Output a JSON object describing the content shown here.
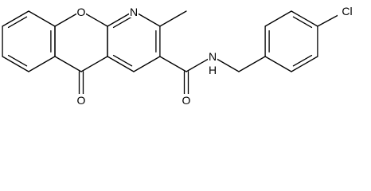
{
  "structure": {
    "atoms": [
      {
        "label": "O"
      },
      {
        "label": "N"
      },
      {
        "label": "O"
      },
      {
        "label": "O"
      },
      {
        "label": "N"
      },
      {
        "label": "H"
      },
      {
        "label": "Cl"
      }
    ]
  }
}
